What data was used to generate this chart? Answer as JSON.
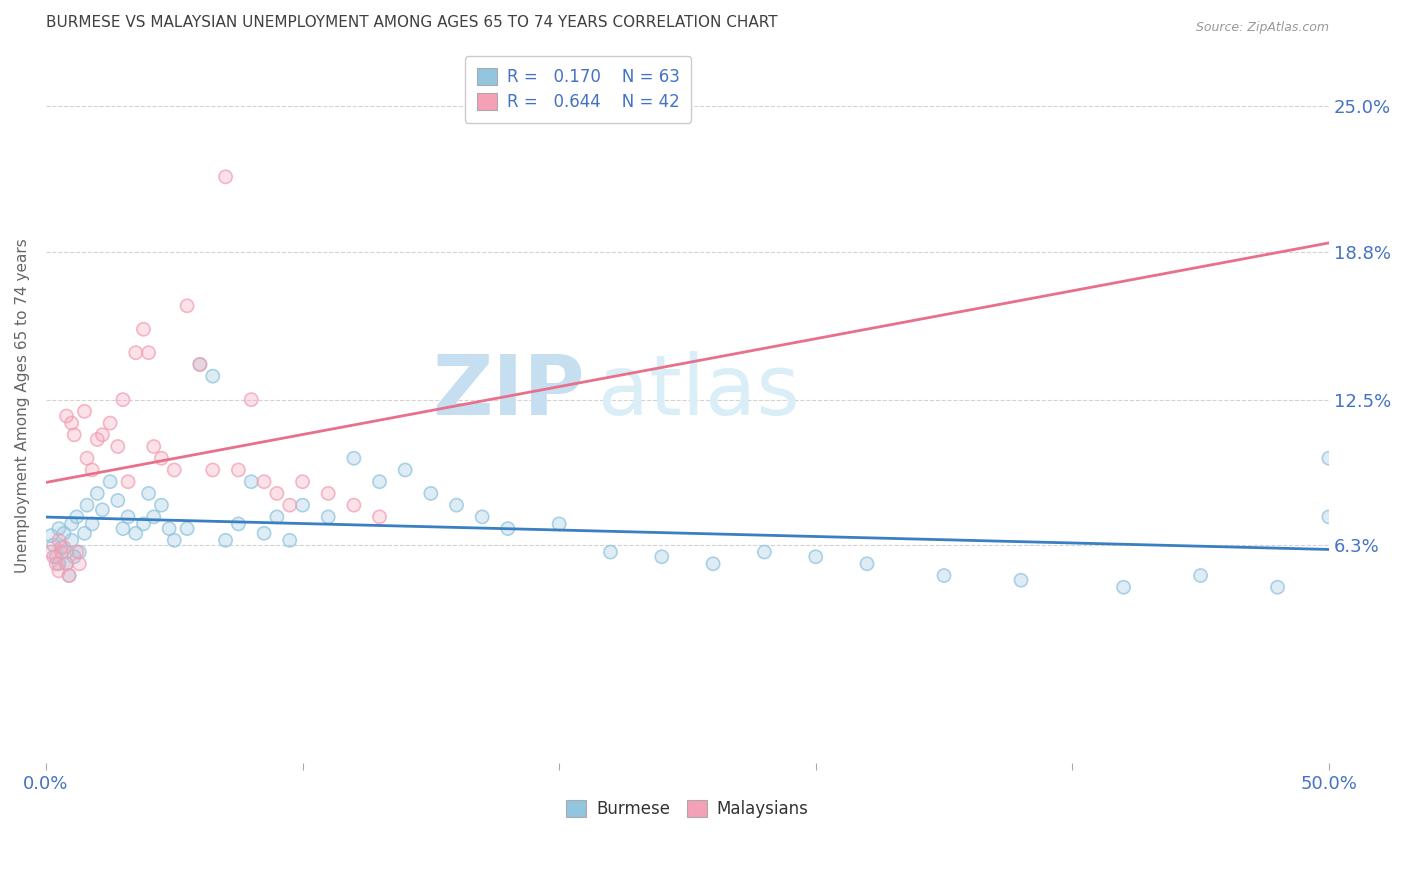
{
  "title": "BURMESE VS MALAYSIAN UNEMPLOYMENT AMONG AGES 65 TO 74 YEARS CORRELATION CHART",
  "source": "Source: ZipAtlas.com",
  "ylabel": "Unemployment Among Ages 65 to 74 years",
  "ytick_labels": [
    "6.3%",
    "12.5%",
    "18.8%",
    "25.0%"
  ],
  "ytick_values": [
    0.063,
    0.125,
    0.188,
    0.25
  ],
  "xlim": [
    0.0,
    0.5
  ],
  "ylim": [
    -0.03,
    0.275
  ],
  "legend_r_burmese": "0.170",
  "legend_n_burmese": "63",
  "legend_r_malaysian": "0.644",
  "legend_n_malaysian": "42",
  "burmese_color": "#92c5de",
  "malaysian_color": "#f4a0b5",
  "burmese_line_color": "#3a7fc1",
  "malaysian_line_color": "#e8708a",
  "background_color": "#ffffff",
  "grid_color": "#c8c8c8",
  "watermark_zip": "ZIP",
  "watermark_atlas": "atlas",
  "watermark_color": "#daeef8",
  "title_color": "#404040",
  "axis_label_color": "#4472c4",
  "legend_label_color": "#4472c4",
  "burmese_x": [
    0.002,
    0.003,
    0.004,
    0.005,
    0.005,
    0.006,
    0.007,
    0.008,
    0.008,
    0.009,
    0.01,
    0.01,
    0.011,
    0.012,
    0.013,
    0.015,
    0.016,
    0.018,
    0.02,
    0.022,
    0.025,
    0.028,
    0.03,
    0.032,
    0.035,
    0.038,
    0.04,
    0.042,
    0.045,
    0.048,
    0.05,
    0.055,
    0.06,
    0.065,
    0.07,
    0.075,
    0.08,
    0.085,
    0.09,
    0.095,
    0.1,
    0.11,
    0.12,
    0.13,
    0.14,
    0.15,
    0.16,
    0.17,
    0.18,
    0.2,
    0.22,
    0.24,
    0.26,
    0.28,
    0.3,
    0.32,
    0.35,
    0.38,
    0.42,
    0.45,
    0.48,
    0.5,
    0.5
  ],
  "burmese_y": [
    0.067,
    0.063,
    0.058,
    0.07,
    0.055,
    0.062,
    0.068,
    0.055,
    0.06,
    0.05,
    0.072,
    0.065,
    0.058,
    0.075,
    0.06,
    0.068,
    0.08,
    0.072,
    0.085,
    0.078,
    0.09,
    0.082,
    0.07,
    0.075,
    0.068,
    0.072,
    0.085,
    0.075,
    0.08,
    0.07,
    0.065,
    0.07,
    0.14,
    0.135,
    0.065,
    0.072,
    0.09,
    0.068,
    0.075,
    0.065,
    0.08,
    0.075,
    0.1,
    0.09,
    0.095,
    0.085,
    0.08,
    0.075,
    0.07,
    0.072,
    0.06,
    0.058,
    0.055,
    0.06,
    0.058,
    0.055,
    0.05,
    0.048,
    0.045,
    0.05,
    0.045,
    0.1,
    0.075
  ],
  "malaysian_x": [
    0.002,
    0.003,
    0.004,
    0.005,
    0.005,
    0.006,
    0.007,
    0.008,
    0.008,
    0.009,
    0.01,
    0.011,
    0.012,
    0.013,
    0.015,
    0.016,
    0.018,
    0.02,
    0.022,
    0.025,
    0.028,
    0.03,
    0.032,
    0.035,
    0.038,
    0.04,
    0.042,
    0.045,
    0.05,
    0.055,
    0.06,
    0.065,
    0.07,
    0.075,
    0.08,
    0.085,
    0.09,
    0.095,
    0.1,
    0.11,
    0.12,
    0.13
  ],
  "malaysian_y": [
    0.06,
    0.058,
    0.055,
    0.065,
    0.052,
    0.06,
    0.062,
    0.055,
    0.118,
    0.05,
    0.115,
    0.11,
    0.06,
    0.055,
    0.12,
    0.1,
    0.095,
    0.108,
    0.11,
    0.115,
    0.105,
    0.125,
    0.09,
    0.145,
    0.155,
    0.145,
    0.105,
    0.1,
    0.095,
    0.165,
    0.14,
    0.095,
    0.22,
    0.095,
    0.125,
    0.09,
    0.085,
    0.08,
    0.09,
    0.085,
    0.08,
    0.075
  ]
}
